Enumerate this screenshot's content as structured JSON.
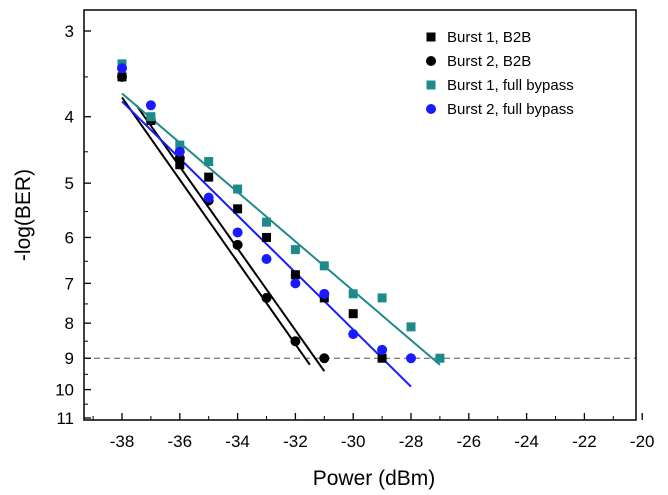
{
  "chart_data": {
    "type": "scatter",
    "title": "",
    "xlabel": "Power (dBm)",
    "ylabel": "-log(BER)",
    "xlim": [
      -39.5,
      -20
    ],
    "x_ticks": [
      -38,
      -36,
      -34,
      -32,
      -30,
      -28,
      -26,
      -24,
      -22,
      -20
    ],
    "y_ticks": [
      3,
      4,
      5,
      6,
      7,
      8,
      9,
      10,
      11
    ],
    "y_scale": "log-log BER scale (top 3, bottom 11)",
    "legend_position": "top-right",
    "grid": false,
    "reference_line": {
      "y": 9,
      "style": "dashed",
      "color": "#555555"
    },
    "series": [
      {
        "name": "Burst 1, B2B",
        "marker": "square",
        "color": "#000000",
        "points": [
          [
            -38,
            3.5
          ],
          [
            -37,
            4.05
          ],
          [
            -36,
            4.7
          ],
          [
            -35,
            4.9
          ],
          [
            -34,
            5.45
          ],
          [
            -33,
            6.0
          ],
          [
            -32,
            6.8
          ],
          [
            -31,
            7.35
          ],
          [
            -30,
            7.75
          ],
          [
            -29,
            9.0
          ]
        ],
        "fit": [
          [
            -38,
            3.75
          ],
          [
            -31.5,
            9.2
          ]
        ]
      },
      {
        "name": "Burst 2, B2B",
        "marker": "circle",
        "color": "#000000",
        "points": [
          [
            -38,
            3.5
          ],
          [
            -37,
            4.05
          ],
          [
            -36,
            4.6
          ],
          [
            -35,
            5.3
          ],
          [
            -34,
            6.15
          ],
          [
            -33,
            7.35
          ],
          [
            -32,
            8.5
          ],
          [
            -31,
            9.0
          ]
        ],
        "fit": [
          [
            -37.5,
            3.85
          ],
          [
            -31,
            9.4
          ]
        ]
      },
      {
        "name": "Burst 1, full bypass",
        "marker": "square",
        "color": "#1f8a8a",
        "points": [
          [
            -38,
            3.35
          ],
          [
            -37,
            4.0
          ],
          [
            -36,
            4.4
          ],
          [
            -35,
            4.65
          ],
          [
            -34,
            5.1
          ],
          [
            -33,
            5.7
          ],
          [
            -32,
            6.25
          ],
          [
            -31,
            6.6
          ],
          [
            -30,
            7.25
          ],
          [
            -29,
            7.35
          ],
          [
            -28,
            8.1
          ],
          [
            -27,
            9.0
          ]
        ],
        "fit": [
          [
            -38,
            3.7
          ],
          [
            -27,
            9.2
          ]
        ]
      },
      {
        "name": "Burst 2, full bypass",
        "marker": "circle",
        "color": "#1a1aff",
        "points": [
          [
            -38,
            3.4
          ],
          [
            -37,
            3.85
          ],
          [
            -36,
            4.5
          ],
          [
            -35,
            5.25
          ],
          [
            -34,
            5.9
          ],
          [
            -33,
            6.45
          ],
          [
            -32,
            7.0
          ],
          [
            -31,
            7.25
          ],
          [
            -30,
            8.3
          ],
          [
            -29,
            8.75
          ],
          [
            -28,
            9.0
          ]
        ],
        "fit": [
          [
            -38,
            3.8
          ],
          [
            -28,
            9.9
          ]
        ]
      }
    ]
  }
}
